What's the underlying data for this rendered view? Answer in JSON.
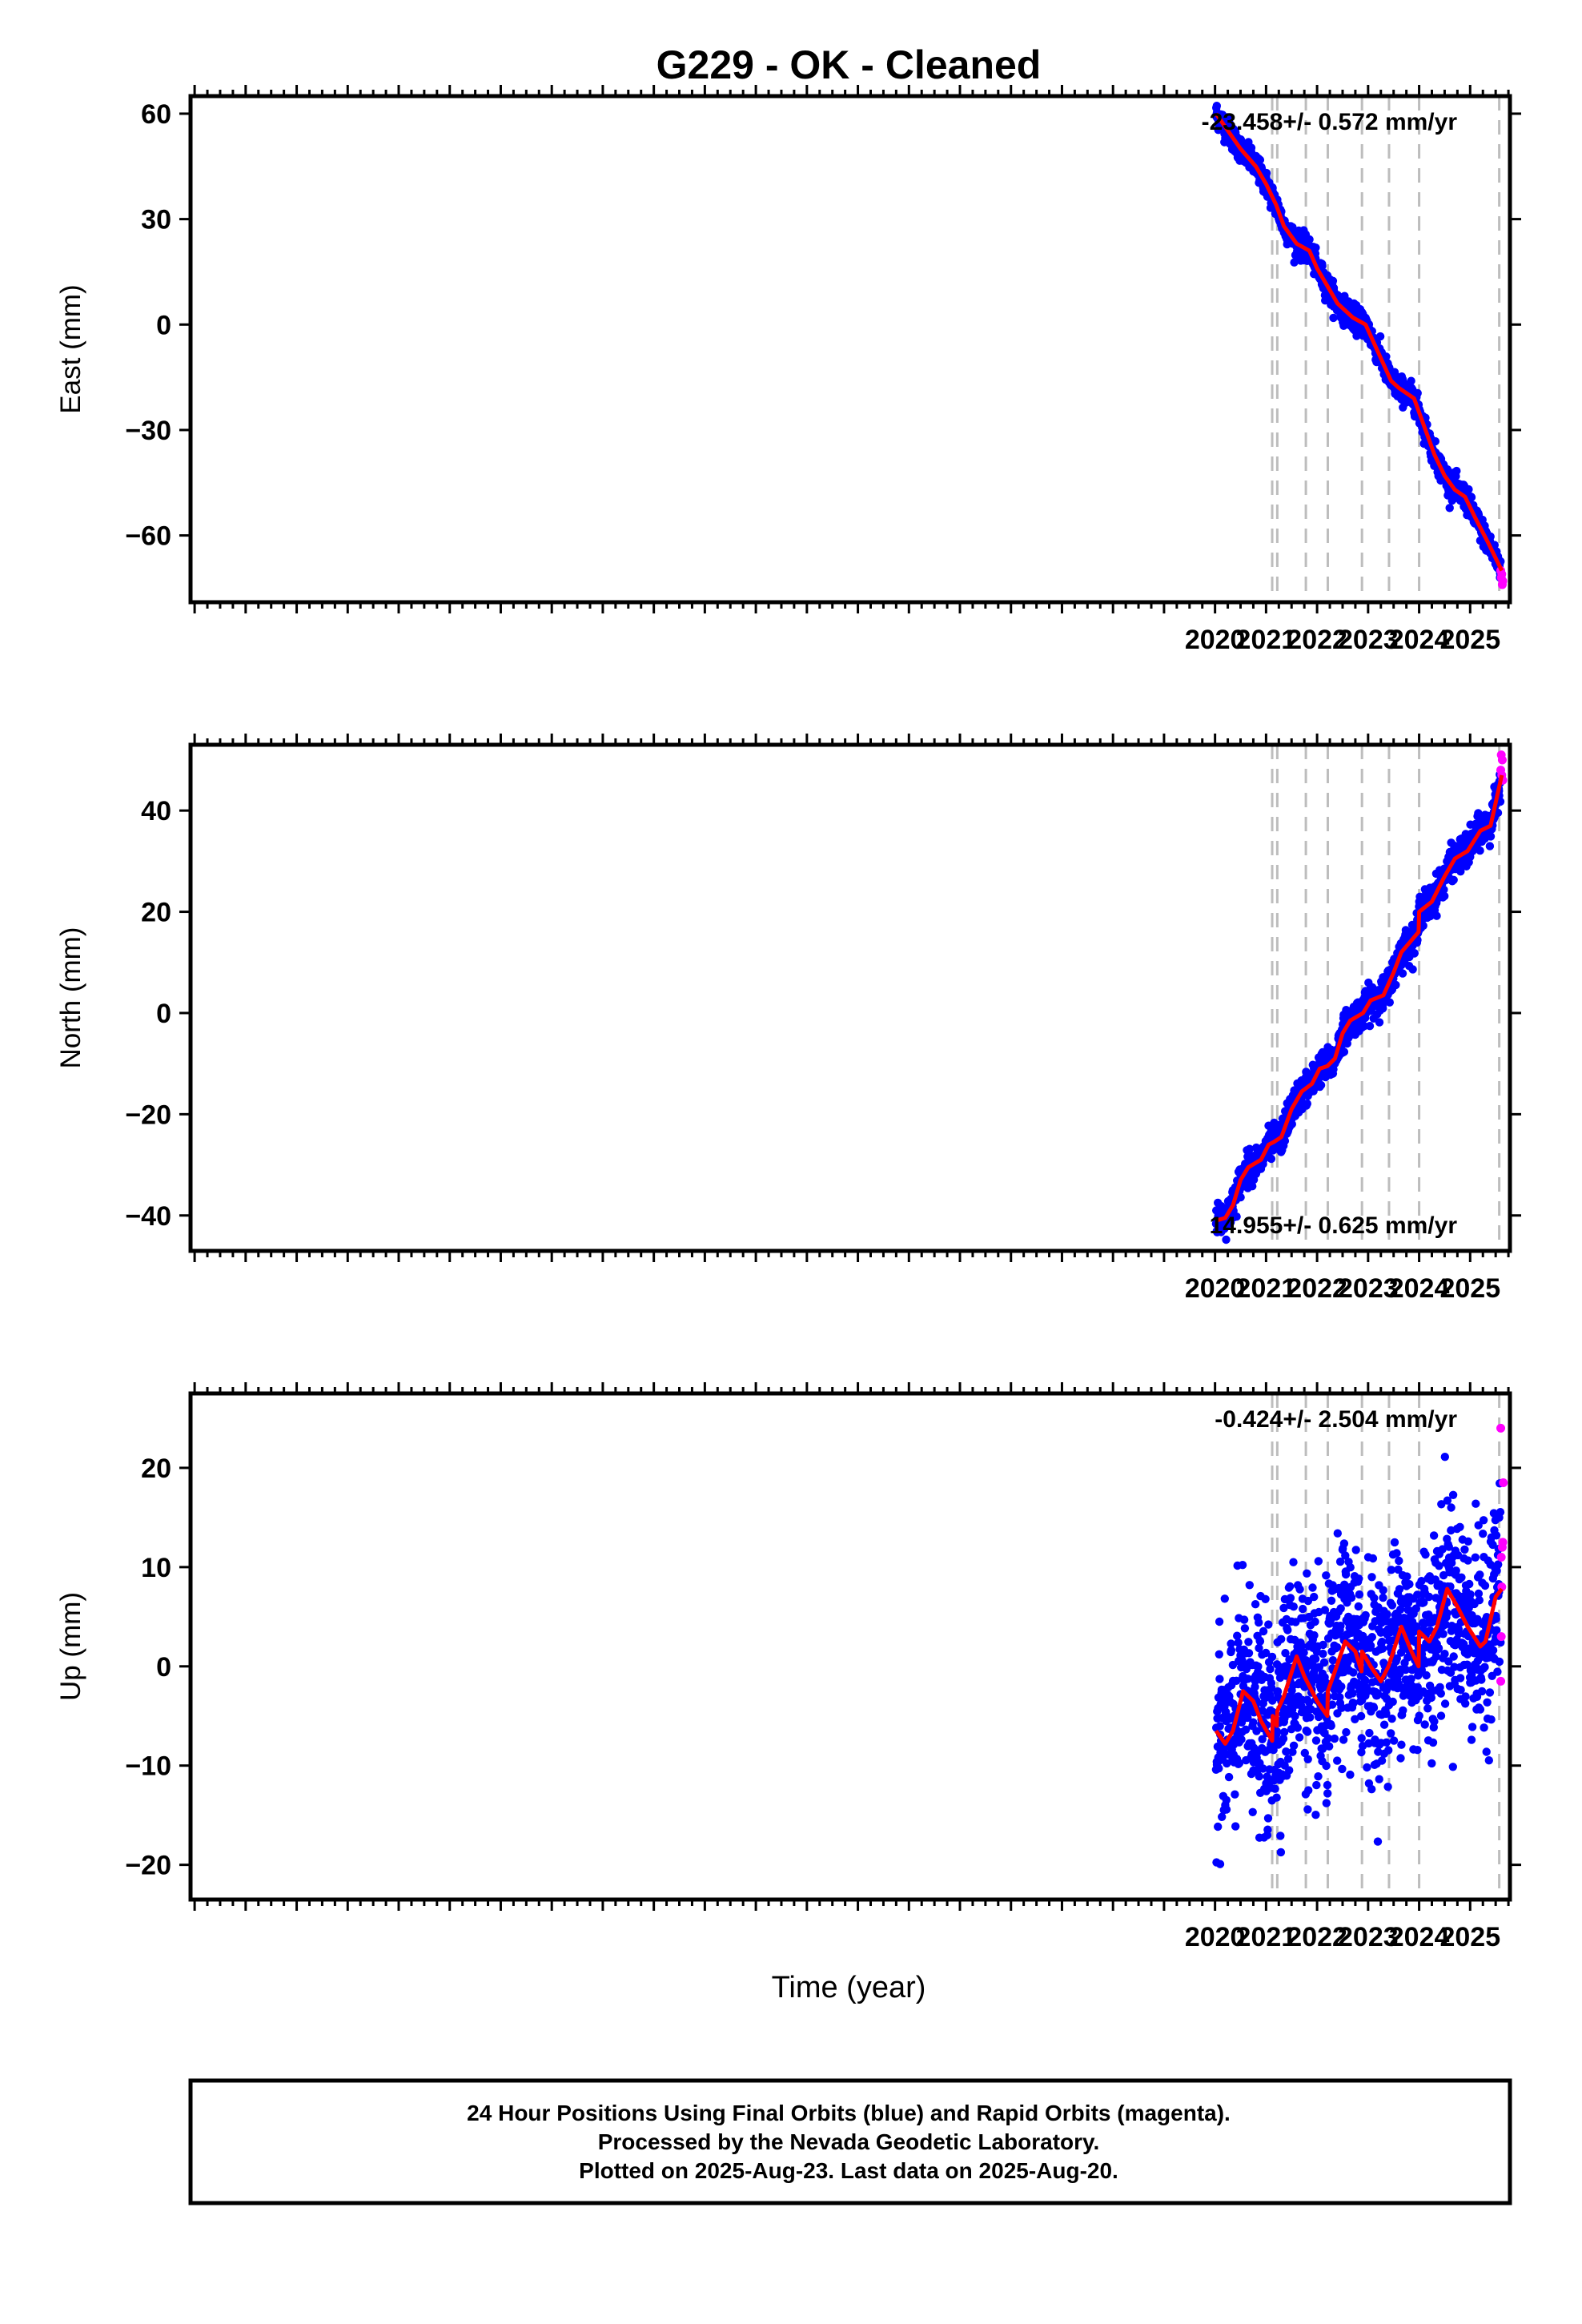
{
  "figure": {
    "title": "G229  - OK - Cleaned",
    "xlabel": "Time (year)",
    "footer": [
      "24 Hour Positions Using Final Orbits (blue) and Rapid Orbits (magenta).",
      "Processed by the Nevada Geodetic Laboratory.",
      "Plotted on 2025-Aug-23. Last data on 2025-Aug-20."
    ]
  },
  "chart_data": [
    {
      "type": "scatter",
      "name": "east",
      "ylabel": "East (mm)",
      "rate_label": "-23.458+/- 0.572 mm/yr",
      "rate_position": "top-right",
      "xlim": [
        1999.92,
        2025.78
      ],
      "ylim": [
        -79,
        65
      ],
      "xticks": [
        2020,
        2021,
        2022,
        2023,
        2024,
        2025
      ],
      "yticks": [
        -60,
        -30,
        0,
        30,
        60
      ],
      "event_lines": [
        2021.12,
        2021.22,
        2021.78,
        2022.21,
        2022.88,
        2023.41,
        2024.0,
        2025.57
      ],
      "model_line": {
        "color": "#ff0000",
        "points": [
          [
            2020.02,
            60
          ],
          [
            2020.5,
            50
          ],
          [
            2020.8,
            45
          ],
          [
            2021.0,
            40
          ],
          [
            2021.2,
            34
          ],
          [
            2021.35,
            28
          ],
          [
            2021.6,
            23
          ],
          [
            2021.85,
            21
          ],
          [
            2022.0,
            16
          ],
          [
            2022.2,
            11
          ],
          [
            2022.4,
            6
          ],
          [
            2022.7,
            2
          ],
          [
            2022.95,
            0
          ],
          [
            2023.2,
            -8
          ],
          [
            2023.45,
            -16
          ],
          [
            2023.6,
            -18
          ],
          [
            2023.9,
            -21
          ],
          [
            2024.05,
            -27
          ],
          [
            2024.3,
            -37
          ],
          [
            2024.5,
            -43
          ],
          [
            2024.7,
            -47
          ],
          [
            2024.9,
            -49
          ],
          [
            2025.1,
            -55
          ],
          [
            2025.35,
            -62
          ],
          [
            2025.62,
            -70
          ]
        ]
      },
      "final_orbits": {
        "color": "#0000ff",
        "scatter_mm": 1.8,
        "span": [
          2020.02,
          2025.6
        ]
      },
      "rapid_orbits": {
        "color": "#ff00ff",
        "x": [
          2025.6,
          2025.61,
          2025.62,
          2025.63,
          2025.64
        ],
        "y": [
          -70,
          -72,
          -71,
          -74,
          -73
        ]
      }
    },
    {
      "type": "scatter",
      "name": "north",
      "ylabel": "North (mm)",
      "rate_label": "14.955+/- 0.625 mm/yr",
      "rate_position": "bottom-right",
      "xlim": [
        1999.92,
        2025.78
      ],
      "ylim": [
        -47,
        53
      ],
      "xticks": [
        2020,
        2021,
        2022,
        2023,
        2024,
        2025
      ],
      "yticks": [
        -40,
        -20,
        0,
        20,
        40
      ],
      "event_lines": [
        2021.12,
        2021.22,
        2021.78,
        2022.21,
        2022.88,
        2023.41,
        2024.0,
        2025.57
      ],
      "model_line": {
        "color": "#ff0000",
        "points": [
          [
            2020.02,
            -41
          ],
          [
            2020.2,
            -40.5
          ],
          [
            2020.35,
            -38
          ],
          [
            2020.5,
            -33
          ],
          [
            2020.65,
            -30.5
          ],
          [
            2020.9,
            -29
          ],
          [
            2021.05,
            -26
          ],
          [
            2021.15,
            -25.5
          ],
          [
            2021.3,
            -24.5
          ],
          [
            2021.5,
            -19
          ],
          [
            2021.7,
            -15.5
          ],
          [
            2021.9,
            -14
          ],
          [
            2022.05,
            -11
          ],
          [
            2022.2,
            -10.5
          ],
          [
            2022.35,
            -9
          ],
          [
            2022.5,
            -4
          ],
          [
            2022.65,
            -1.5
          ],
          [
            2022.9,
            0
          ],
          [
            2023.05,
            2.5
          ],
          [
            2023.3,
            3.5
          ],
          [
            2023.5,
            8
          ],
          [
            2023.65,
            12
          ],
          [
            2023.99,
            16
          ],
          [
            2024.0,
            20
          ],
          [
            2024.25,
            22
          ],
          [
            2024.5,
            27
          ],
          [
            2024.7,
            30.5
          ],
          [
            2024.95,
            32
          ],
          [
            2025.2,
            36
          ],
          [
            2025.4,
            37
          ],
          [
            2025.62,
            47
          ]
        ]
      },
      "final_orbits": {
        "color": "#0000ff",
        "scatter_mm": 1.6,
        "span": [
          2020.02,
          2025.6
        ]
      },
      "rapid_orbits": {
        "color": "#ff00ff",
        "x": [
          2025.6,
          2025.61,
          2025.62,
          2025.63,
          2025.64
        ],
        "y": [
          48,
          51,
          47,
          50,
          46
        ]
      }
    },
    {
      "type": "scatter",
      "name": "up",
      "ylabel": "Up (mm)",
      "rate_label": "-0.424+/- 2.504 mm/yr",
      "rate_position": "top-right",
      "xlim": [
        1999.92,
        2025.78
      ],
      "ylim": [
        -23.5,
        27.5
      ],
      "xticks": [
        2020,
        2021,
        2022,
        2023,
        2024,
        2025
      ],
      "yticks": [
        -20,
        -10,
        0,
        10,
        20
      ],
      "event_lines": [
        2021.12,
        2021.22,
        2021.78,
        2022.21,
        2022.88,
        2023.41,
        2024.0,
        2025.57
      ],
      "model_line": {
        "color": "#ff0000",
        "points": [
          [
            2020.02,
            -6.5
          ],
          [
            2020.2,
            -7.8
          ],
          [
            2020.35,
            -6.5
          ],
          [
            2020.55,
            -2.5
          ],
          [
            2020.75,
            -3.5
          ],
          [
            2020.9,
            -5.5
          ],
          [
            2021.12,
            -7.5
          ],
          [
            2021.13,
            -5
          ],
          [
            2021.21,
            -6
          ],
          [
            2021.22,
            -4.5
          ],
          [
            2021.35,
            -3
          ],
          [
            2021.6,
            1
          ],
          [
            2021.75,
            -1
          ],
          [
            2022.0,
            -3.5
          ],
          [
            2022.2,
            -5
          ],
          [
            2022.21,
            -2.5
          ],
          [
            2022.35,
            -0.5
          ],
          [
            2022.55,
            2.5
          ],
          [
            2022.75,
            1.5
          ],
          [
            2022.87,
            -0.5
          ],
          [
            2022.88,
            1.5
          ],
          [
            2023.05,
            0
          ],
          [
            2023.25,
            -1.5
          ],
          [
            2023.4,
            0
          ],
          [
            2023.65,
            4
          ],
          [
            2023.85,
            1.5
          ],
          [
            2023.99,
            0
          ],
          [
            2024.0,
            3.5
          ],
          [
            2024.2,
            2.5
          ],
          [
            2024.35,
            4
          ],
          [
            2024.55,
            7.8
          ],
          [
            2024.75,
            6
          ],
          [
            2024.95,
            4
          ],
          [
            2025.2,
            2
          ],
          [
            2025.3,
            2.5
          ],
          [
            2025.5,
            7
          ],
          [
            2025.62,
            7.8
          ]
        ]
      },
      "final_orbits": {
        "color": "#0000ff",
        "scatter_mm": 5.0,
        "span": [
          2020.02,
          2025.6
        ]
      },
      "rapid_orbits": {
        "color": "#ff00ff",
        "x": [
          2025.6,
          2025.61,
          2025.62,
          2025.63,
          2025.64,
          2025.65,
          2025.6,
          2025.61
        ],
        "y": [
          -1.5,
          3,
          8,
          12,
          12.5,
          18.5,
          24,
          11
        ]
      }
    }
  ]
}
